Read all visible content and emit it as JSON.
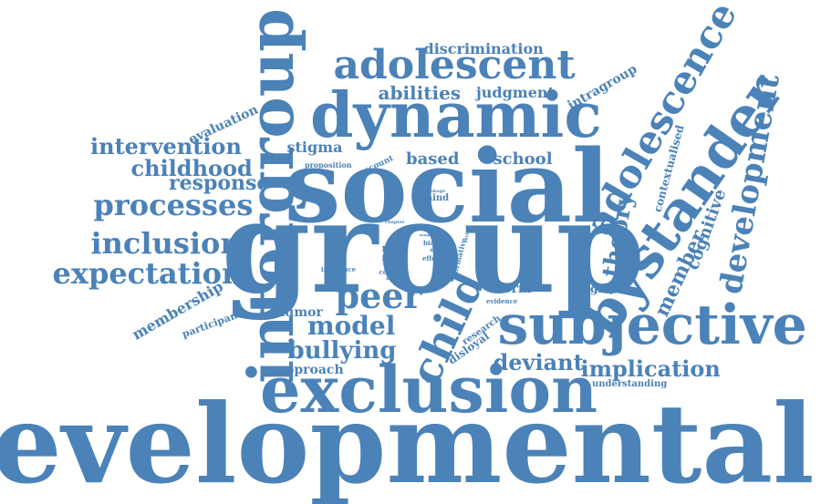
{
  "colors": {
    "text": "#4b82b8",
    "background": "#ffffff"
  },
  "words": [
    {
      "text": "developmental"
    },
    {
      "text": "exclusion"
    },
    {
      "text": "group"
    },
    {
      "text": "social"
    },
    {
      "text": "subjective"
    },
    {
      "text": "dynamic"
    },
    {
      "text": "intergroup"
    },
    {
      "text": "adolescent"
    },
    {
      "text": "bystander"
    },
    {
      "text": "adolescence"
    },
    {
      "text": "child"
    },
    {
      "text": "development"
    },
    {
      "text": "peer"
    },
    {
      "text": "processes"
    },
    {
      "text": "inclusion"
    },
    {
      "text": "expectation"
    },
    {
      "text": "model"
    },
    {
      "text": "bullying"
    },
    {
      "text": "deviant"
    },
    {
      "text": "implication"
    },
    {
      "text": "theory"
    },
    {
      "text": "intervention"
    },
    {
      "text": "childhood"
    },
    {
      "text": "response"
    },
    {
      "text": "membership"
    },
    {
      "text": "member"
    },
    {
      "text": "cognitive"
    },
    {
      "text": "discrimination"
    },
    {
      "text": "abilities"
    },
    {
      "text": "judgment"
    },
    {
      "text": "intragroup"
    },
    {
      "text": "evaluation"
    },
    {
      "text": "stigma"
    },
    {
      "text": "based"
    },
    {
      "text": "school"
    },
    {
      "text": "humor"
    },
    {
      "text": "approach"
    },
    {
      "text": "norm"
    },
    {
      "text": "weight"
    },
    {
      "text": "contextualised"
    },
    {
      "text": "participant"
    },
    {
      "text": "understanding"
    },
    {
      "text": "disloyal"
    },
    {
      "text": "research"
    },
    {
      "text": "account"
    },
    {
      "text": "proposition"
    },
    {
      "text": "race"
    },
    {
      "text": "more"
    },
    {
      "text": "mind"
    },
    {
      "text": "introduce"
    },
    {
      "text": "context"
    },
    {
      "text": "average"
    },
    {
      "text": "evidence"
    },
    {
      "text": "normative"
    },
    {
      "text": "bias"
    },
    {
      "text": "effect"
    },
    {
      "text": "linkage"
    },
    {
      "text": "chapter"
    },
    {
      "text": "percent"
    },
    {
      "text": "usage"
    },
    {
      "text": "dugd"
    },
    {
      "text": "review"
    }
  ]
}
